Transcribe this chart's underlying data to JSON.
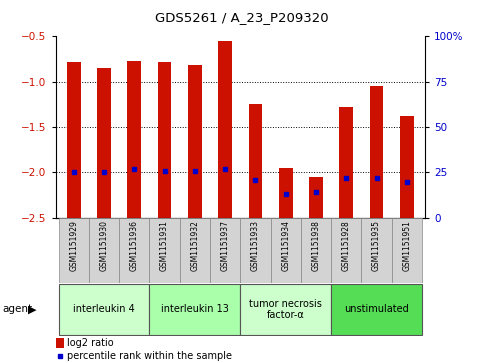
{
  "title": "GDS5261 / A_23_P209320",
  "samples": [
    "GSM1151929",
    "GSM1151930",
    "GSM1151936",
    "GSM1151931",
    "GSM1151932",
    "GSM1151937",
    "GSM1151933",
    "GSM1151934",
    "GSM1151938",
    "GSM1151928",
    "GSM1151935",
    "GSM1151951"
  ],
  "log2_ratio": [
    -0.78,
    -0.85,
    -0.77,
    -0.78,
    -0.82,
    -0.55,
    -1.25,
    -1.95,
    -2.05,
    -1.28,
    -1.05,
    -1.38
  ],
  "percentile": [
    25,
    25,
    27,
    26,
    26,
    27,
    21,
    13,
    14,
    22,
    22,
    20
  ],
  "bar_color": "#cc1100",
  "dot_color": "#0000cc",
  "ylim_left": [
    -2.5,
    -0.5
  ],
  "ylim_right": [
    0,
    100
  ],
  "yticks_left": [
    -0.5,
    -1.0,
    -1.5,
    -2.0,
    -2.5
  ],
  "yticks_right": [
    0,
    25,
    50,
    75,
    100
  ],
  "ytick_labels_right": [
    "0",
    "25",
    "50",
    "75",
    "100%"
  ],
  "groups": [
    {
      "label": "interleukin 4",
      "start": 0,
      "end": 3,
      "color": "#ccffcc"
    },
    {
      "label": "interleukin 13",
      "start": 3,
      "end": 6,
      "color": "#aaffaa"
    },
    {
      "label": "tumor necrosis\nfactor-α",
      "start": 6,
      "end": 9,
      "color": "#ccffcc"
    },
    {
      "label": "unstimulated",
      "start": 9,
      "end": 12,
      "color": "#55dd55"
    }
  ],
  "agent_label": "agent",
  "legend_red": "log2 ratio",
  "legend_blue": "percentile rank within the sample",
  "bar_width": 0.45,
  "background_color": "#ffffff",
  "plot_bg_color": "#ffffff",
  "tick_label_color_left": "#cc1100",
  "tick_label_color_right": "#0000cc",
  "label_bg_color": "#d3d3d3"
}
